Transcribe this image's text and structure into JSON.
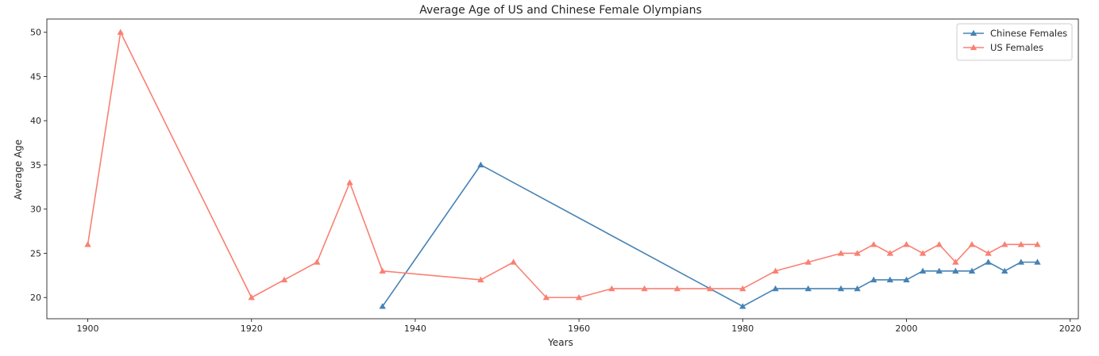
{
  "chart_data": {
    "type": "line",
    "title": "Average Age of US and Chinese Female Olympians",
    "xlabel": "Years",
    "ylabel": "Average Age",
    "xlim": [
      1895,
      2021
    ],
    "ylim": [
      17.6,
      51.5
    ],
    "xticks": [
      1900,
      1920,
      1940,
      1960,
      1980,
      2000,
      2020
    ],
    "yticks": [
      20,
      25,
      30,
      35,
      40,
      45,
      50
    ],
    "grid": false,
    "legend_position": "top-right",
    "marker": "triangle-up",
    "series": [
      {
        "name": "Chinese Females",
        "color": "#4682b4",
        "x": [
          1936,
          1948,
          1980,
          1984,
          1988,
          1992,
          1994,
          1996,
          1998,
          2000,
          2002,
          2004,
          2006,
          2008,
          2010,
          2012,
          2014,
          2016
        ],
        "y": [
          19,
          35,
          19,
          21,
          21,
          21,
          21,
          22,
          22,
          22,
          23,
          23,
          23,
          23,
          24,
          23,
          24,
          24
        ]
      },
      {
        "name": "US Females",
        "color": "#fa8072",
        "x": [
          1900,
          1904,
          1920,
          1924,
          1928,
          1932,
          1936,
          1948,
          1952,
          1956,
          1960,
          1964,
          1968,
          1972,
          1976,
          1980,
          1984,
          1988,
          1992,
          1994,
          1996,
          1998,
          2000,
          2002,
          2004,
          2006,
          2008,
          2010,
          2012,
          2014,
          2016
        ],
        "y": [
          26,
          50,
          20,
          22,
          24,
          33,
          23,
          22,
          24,
          20,
          20,
          21,
          21,
          21,
          21,
          21,
          23,
          24,
          25,
          25,
          26,
          25,
          26,
          25,
          26,
          24,
          26,
          25,
          26,
          26,
          26
        ]
      }
    ]
  }
}
